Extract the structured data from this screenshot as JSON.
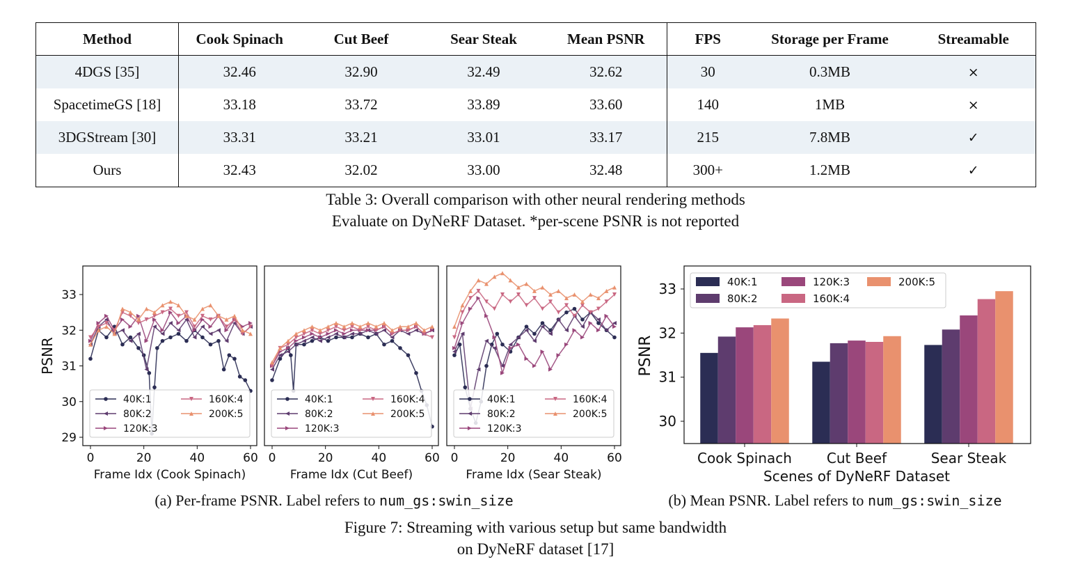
{
  "table": {
    "headers": [
      "Method",
      "Cook Spinach",
      "Cut Beef",
      "Sear Steak",
      "Mean PSNR",
      "FPS",
      "Storage per Frame",
      "Streamable"
    ],
    "rows": [
      [
        "4DGS [35]",
        "32.46",
        "32.90",
        "32.49",
        "32.62",
        "30",
        "0.3MB",
        "×"
      ],
      [
        "SpacetimeGS [18]",
        "33.18",
        "33.72",
        "33.89",
        "33.60",
        "140",
        "1MB",
        "×"
      ],
      [
        "3DGStream [30]",
        "33.31",
        "33.21",
        "33.01",
        "33.17",
        "215",
        "7.8MB",
        "✓"
      ],
      [
        "Ours",
        "32.43",
        "32.02",
        "33.00",
        "32.48",
        "300+",
        "1.2MB",
        "✓"
      ]
    ],
    "caption_line1": "Table 3: Overall comparison with other neural rendering methods",
    "caption_line2": "Evaluate on DyNeRF Dataset. *per-scene PSNR is not reported"
  },
  "figure": {
    "subcaption_a_text": "(a) Per-frame PSNR. Label refers to",
    "subcaption_a_code": "num_gs:swin_size",
    "subcaption_b_text": "(b) Mean PSNR. Label refers to",
    "subcaption_b_code": "num_gs:swin_size",
    "caption_line1": "Figure 7: Streaming with various setup but same bandwidth",
    "caption_line2": "on DyNeRF dataset [17]"
  },
  "chart_data": [
    {
      "type": "line",
      "ylabel": "PSNR",
      "xlabel": "Frame Idx (Cook Spinach)",
      "xlim": [
        0,
        60
      ],
      "ylim": [
        29,
        33.5
      ],
      "xticks": [
        "0",
        "20",
        "40",
        "60"
      ],
      "yticks": [
        "29",
        "30",
        "31",
        "32",
        "33"
      ],
      "legend": "lower-center",
      "series": [
        {
          "name": "40K:1",
          "color": "#2b2d54",
          "marker": "circle",
          "x": [
            0,
            3,
            6,
            9,
            12,
            15,
            18,
            20,
            22,
            23,
            24,
            25,
            27,
            30,
            33,
            36,
            39,
            42,
            45,
            48,
            50,
            52,
            54,
            56,
            58,
            60
          ],
          "y": [
            31.2,
            32.0,
            31.8,
            32.1,
            31.6,
            31.8,
            31.5,
            31.3,
            30.8,
            29.1,
            30.4,
            31.5,
            31.7,
            31.8,
            31.9,
            31.7,
            32.0,
            31.8,
            31.6,
            31.7,
            30.9,
            31.3,
            31.2,
            30.7,
            30.6,
            30.3
          ]
        },
        {
          "name": "80K:2",
          "color": "#5e3c6e",
          "marker": "triangle-left",
          "x": [
            0,
            3,
            6,
            9,
            12,
            15,
            18,
            21,
            24,
            27,
            30,
            33,
            36,
            39,
            42,
            45,
            48,
            51,
            54,
            57,
            60
          ],
          "y": [
            31.6,
            32.1,
            32.3,
            31.9,
            32.0,
            31.7,
            31.9,
            30.9,
            32.1,
            31.9,
            32.2,
            32.0,
            32.3,
            31.8,
            32.1,
            31.9,
            32.0,
            31.7,
            32.2,
            31.9,
            32.1
          ]
        },
        {
          "name": "120K:3",
          "color": "#9a477b",
          "marker": "triangle-right",
          "x": [
            0,
            3,
            6,
            9,
            12,
            15,
            18,
            21,
            24,
            27,
            30,
            33,
            36,
            39,
            42,
            45,
            48,
            51,
            54,
            57,
            60
          ],
          "y": [
            31.7,
            32.2,
            32.4,
            32.0,
            32.3,
            32.1,
            32.4,
            31.7,
            32.3,
            32.0,
            32.5,
            32.2,
            32.4,
            32.0,
            32.3,
            32.1,
            32.4,
            32.0,
            32.3,
            32.1,
            32.2
          ]
        },
        {
          "name": "160K:4",
          "color": "#c96782",
          "marker": "triangle-down",
          "x": [
            0,
            3,
            6,
            9,
            12,
            15,
            18,
            21,
            24,
            27,
            30,
            33,
            36,
            39,
            42,
            45,
            48,
            51,
            54,
            57,
            60
          ],
          "y": [
            31.8,
            32.1,
            32.2,
            32.0,
            32.5,
            32.4,
            32.2,
            32.3,
            32.4,
            32.5,
            32.6,
            32.4,
            32.5,
            32.1,
            32.4,
            32.3,
            32.4,
            32.1,
            32.3,
            31.9,
            32.1
          ]
        },
        {
          "name": "200K:5",
          "color": "#e9916e",
          "marker": "triangle-up",
          "x": [
            0,
            3,
            6,
            9,
            12,
            15,
            18,
            21,
            24,
            27,
            30,
            33,
            36,
            39,
            42,
            45,
            48,
            51,
            54,
            57,
            60
          ],
          "y": [
            31.6,
            32.0,
            32.1,
            31.9,
            32.6,
            32.5,
            32.3,
            32.6,
            32.5,
            32.7,
            32.8,
            32.7,
            32.4,
            32.3,
            32.6,
            32.7,
            32.4,
            32.3,
            32.4,
            32.0,
            31.9
          ]
        }
      ]
    },
    {
      "type": "line",
      "xlabel": "Frame Idx (Cut Beef)",
      "xlim": [
        0,
        60
      ],
      "ylim": [
        29,
        33.5
      ],
      "xticks": [
        "0",
        "20",
        "40",
        "60"
      ],
      "legend": "lower-center",
      "series": [
        {
          "name": "40K:1",
          "color": "#2b2d54",
          "marker": "circle",
          "x": [
            0,
            3,
            6,
            7,
            8,
            9,
            12,
            15,
            18,
            21,
            24,
            27,
            30,
            33,
            36,
            39,
            42,
            45,
            48,
            51,
            54,
            56,
            58,
            60
          ],
          "y": [
            30.6,
            31.2,
            31.5,
            31.3,
            30.3,
            31.6,
            31.6,
            31.7,
            31.8,
            31.7,
            31.8,
            31.8,
            31.8,
            31.9,
            31.8,
            31.9,
            31.6,
            31.7,
            31.5,
            31.3,
            30.8,
            30.3,
            29.9,
            29.3
          ]
        },
        {
          "name": "80K:2",
          "color": "#5e3c6e",
          "marker": "triangle-left",
          "x": [
            0,
            3,
            6,
            9,
            12,
            15,
            18,
            21,
            24,
            27,
            30,
            33,
            36,
            39,
            42,
            45,
            48,
            51,
            54,
            57,
            60
          ],
          "y": [
            30.9,
            31.3,
            31.4,
            31.6,
            31.7,
            31.8,
            31.7,
            31.8,
            31.9,
            31.8,
            31.9,
            31.9,
            32.0,
            31.9,
            32.0,
            31.8,
            32.0,
            31.9,
            32.0,
            31.9,
            32.0
          ]
        },
        {
          "name": "120K:3",
          "color": "#9a477b",
          "marker": "triangle-right",
          "x": [
            0,
            3,
            6,
            9,
            12,
            15,
            18,
            21,
            24,
            27,
            30,
            33,
            36,
            39,
            42,
            45,
            48,
            51,
            54,
            57,
            60
          ],
          "y": [
            31.0,
            31.4,
            31.5,
            31.7,
            31.8,
            31.9,
            31.8,
            31.9,
            32.0,
            31.9,
            32.0,
            32.0,
            32.0,
            32.0,
            32.1,
            31.9,
            32.0,
            32.0,
            32.1,
            31.9,
            32.0
          ]
        },
        {
          "name": "160K:4",
          "color": "#c96782",
          "marker": "triangle-down",
          "x": [
            0,
            3,
            6,
            9,
            12,
            15,
            18,
            21,
            24,
            27,
            30,
            33,
            36,
            39,
            42,
            45,
            48,
            51,
            54,
            57,
            60
          ],
          "y": [
            31.0,
            31.5,
            31.6,
            31.8,
            31.9,
            32.0,
            31.9,
            32.0,
            32.1,
            32.0,
            32.1,
            32.0,
            32.1,
            32.0,
            32.1,
            31.9,
            32.0,
            32.0,
            32.1,
            31.9,
            31.8
          ]
        },
        {
          "name": "200K:5",
          "color": "#e9916e",
          "marker": "triangle-up",
          "x": [
            0,
            3,
            6,
            9,
            12,
            15,
            18,
            21,
            24,
            27,
            30,
            33,
            36,
            39,
            42,
            45,
            48,
            51,
            54,
            57,
            60
          ],
          "y": [
            31.1,
            31.5,
            31.7,
            31.9,
            32.0,
            32.1,
            32.0,
            32.1,
            32.2,
            32.1,
            32.2,
            32.1,
            32.2,
            32.1,
            32.2,
            32.0,
            32.1,
            32.1,
            32.2,
            32.0,
            32.1
          ]
        }
      ]
    },
    {
      "type": "line",
      "xlabel": "Frame Idx (Sear Steak)",
      "xlim": [
        0,
        60
      ],
      "ylim": [
        29,
        33.5
      ],
      "xticks": [
        "0",
        "20",
        "40",
        "60"
      ],
      "legend": "lower-center",
      "series": [
        {
          "name": "40K:1",
          "color": "#2b2d54",
          "marker": "circle",
          "x": [
            0,
            2,
            4,
            6,
            8,
            10,
            12,
            14,
            16,
            18,
            21,
            24,
            27,
            30,
            33,
            36,
            39,
            42,
            45,
            48,
            51,
            54,
            57,
            60
          ],
          "y": [
            31.3,
            31.6,
            30.4,
            29.8,
            29.4,
            30.0,
            31.0,
            31.6,
            31.9,
            31.6,
            31.4,
            31.8,
            32.1,
            31.9,
            32.2,
            32.0,
            32.3,
            32.5,
            32.6,
            32.3,
            32.5,
            32.2,
            32.0,
            31.8
          ]
        },
        {
          "name": "80K:2",
          "color": "#5e3c6e",
          "marker": "triangle-left",
          "x": [
            0,
            3,
            6,
            9,
            12,
            15,
            18,
            21,
            24,
            27,
            30,
            33,
            36,
            39,
            42,
            45,
            48,
            51,
            54,
            57,
            60
          ],
          "y": [
            31.4,
            31.9,
            29.8,
            30.9,
            31.7,
            31.5,
            31.0,
            31.6,
            31.8,
            32.0,
            31.7,
            32.1,
            31.9,
            32.3,
            32.0,
            32.4,
            32.1,
            32.5,
            32.3,
            32.0,
            32.2
          ]
        },
        {
          "name": "120K:3",
          "color": "#9a477b",
          "marker": "triangle-right",
          "x": [
            0,
            3,
            6,
            9,
            12,
            15,
            18,
            21,
            24,
            27,
            30,
            33,
            36,
            39,
            42,
            45,
            48,
            51,
            54,
            57,
            60
          ],
          "y": [
            31.5,
            32.2,
            32.6,
            32.9,
            32.4,
            31.8,
            30.8,
            31.5,
            31.6,
            31.2,
            31.0,
            31.4,
            30.9,
            31.3,
            31.6,
            32.0,
            31.8,
            32.2,
            32.0,
            32.4,
            32.1
          ]
        },
        {
          "name": "160K:4",
          "color": "#c96782",
          "marker": "triangle-down",
          "x": [
            0,
            3,
            6,
            9,
            12,
            15,
            18,
            21,
            24,
            27,
            30,
            33,
            36,
            39,
            42,
            45,
            48,
            51,
            54,
            57,
            60
          ],
          "y": [
            31.8,
            32.5,
            32.9,
            33.1,
            32.8,
            32.6,
            33.0,
            32.8,
            33.0,
            32.7,
            32.9,
            32.6,
            32.8,
            32.5,
            32.7,
            32.4,
            32.7,
            32.5,
            32.6,
            32.8,
            33.0
          ]
        },
        {
          "name": "200K:5",
          "color": "#e9916e",
          "marker": "triangle-up",
          "x": [
            0,
            3,
            6,
            9,
            12,
            15,
            18,
            21,
            24,
            27,
            30,
            33,
            36,
            39,
            42,
            45,
            48,
            51,
            54,
            57,
            60
          ],
          "y": [
            32.1,
            32.7,
            33.1,
            33.4,
            33.3,
            33.5,
            33.6,
            33.4,
            33.2,
            33.3,
            33.1,
            33.2,
            33.0,
            33.1,
            32.9,
            33.0,
            32.8,
            33.0,
            32.9,
            33.1,
            33.2
          ]
        }
      ]
    },
    {
      "type": "bar",
      "ylabel": "PSNR",
      "xlabel": "Scenes of DyNeRF Dataset",
      "ylim": [
        29.5,
        33.3
      ],
      "yticks": [
        "30",
        "31",
        "32",
        "33"
      ],
      "legend": "upper-left",
      "categories": [
        "Cook Spinach",
        "Cut Beef",
        "Sear Steak"
      ],
      "series": [
        {
          "name": "40K:1",
          "color": "#2b2d54",
          "values": [
            31.55,
            31.35,
            31.73
          ]
        },
        {
          "name": "80K:2",
          "color": "#5e3c6e",
          "values": [
            31.92,
            31.77,
            32.08
          ]
        },
        {
          "name": "120K:3",
          "color": "#9a477b",
          "values": [
            32.13,
            31.83,
            32.4
          ]
        },
        {
          "name": "160K:4",
          "color": "#c96782",
          "values": [
            32.18,
            31.8,
            32.77
          ]
        },
        {
          "name": "200K:5",
          "color": "#e9916e",
          "values": [
            32.33,
            31.93,
            32.95
          ]
        }
      ]
    }
  ]
}
